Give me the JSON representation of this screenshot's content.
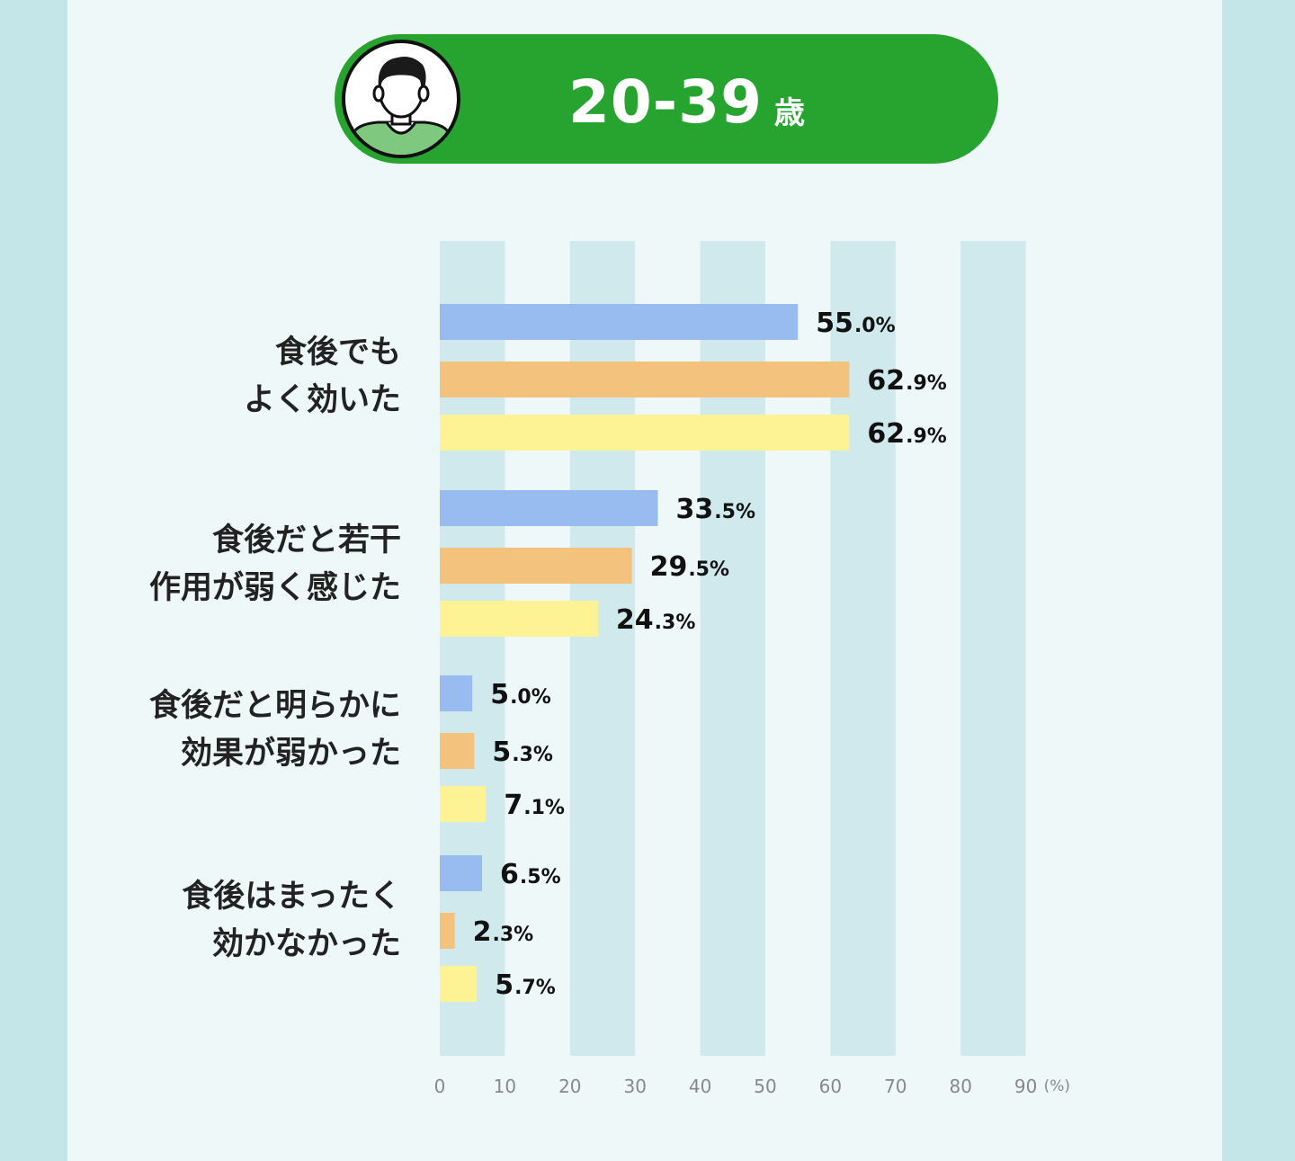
{
  "header": {
    "age_range": "20-39",
    "age_suffix": "歳",
    "avatar_icon": "man-avatar-icon"
  },
  "colors": {
    "header_green": "#27a330",
    "shirt_green": "#7ec87f",
    "series": [
      "#99bcf0",
      "#f3c27c",
      "#fdf294"
    ],
    "column_stripe": "#cfe9ec"
  },
  "chart_data": {
    "type": "bar",
    "orientation": "horizontal",
    "categories": [
      [
        "食後でも",
        "よく効いた"
      ],
      [
        "食後だと若干",
        "作用が弱く感じた"
      ],
      [
        "食後だと明らかに",
        "効果が弱かった"
      ],
      [
        "食後はまったく",
        "効かなかった"
      ]
    ],
    "series": [
      {
        "values": [
          55.0,
          33.5,
          5.0,
          6.5
        ]
      },
      {
        "values": [
          62.9,
          29.5,
          5.3,
          2.3
        ]
      },
      {
        "values": [
          62.9,
          24.3,
          7.1,
          5.7
        ]
      }
    ],
    "xlim": [
      0,
      90
    ],
    "xticks": [
      "0",
      "10",
      "20",
      "30",
      "40",
      "50",
      "60",
      "70",
      "80",
      "90"
    ],
    "xunit": "(%)",
    "value_suffix": "%",
    "legend": "none",
    "grid": "alternating vertical bands"
  }
}
